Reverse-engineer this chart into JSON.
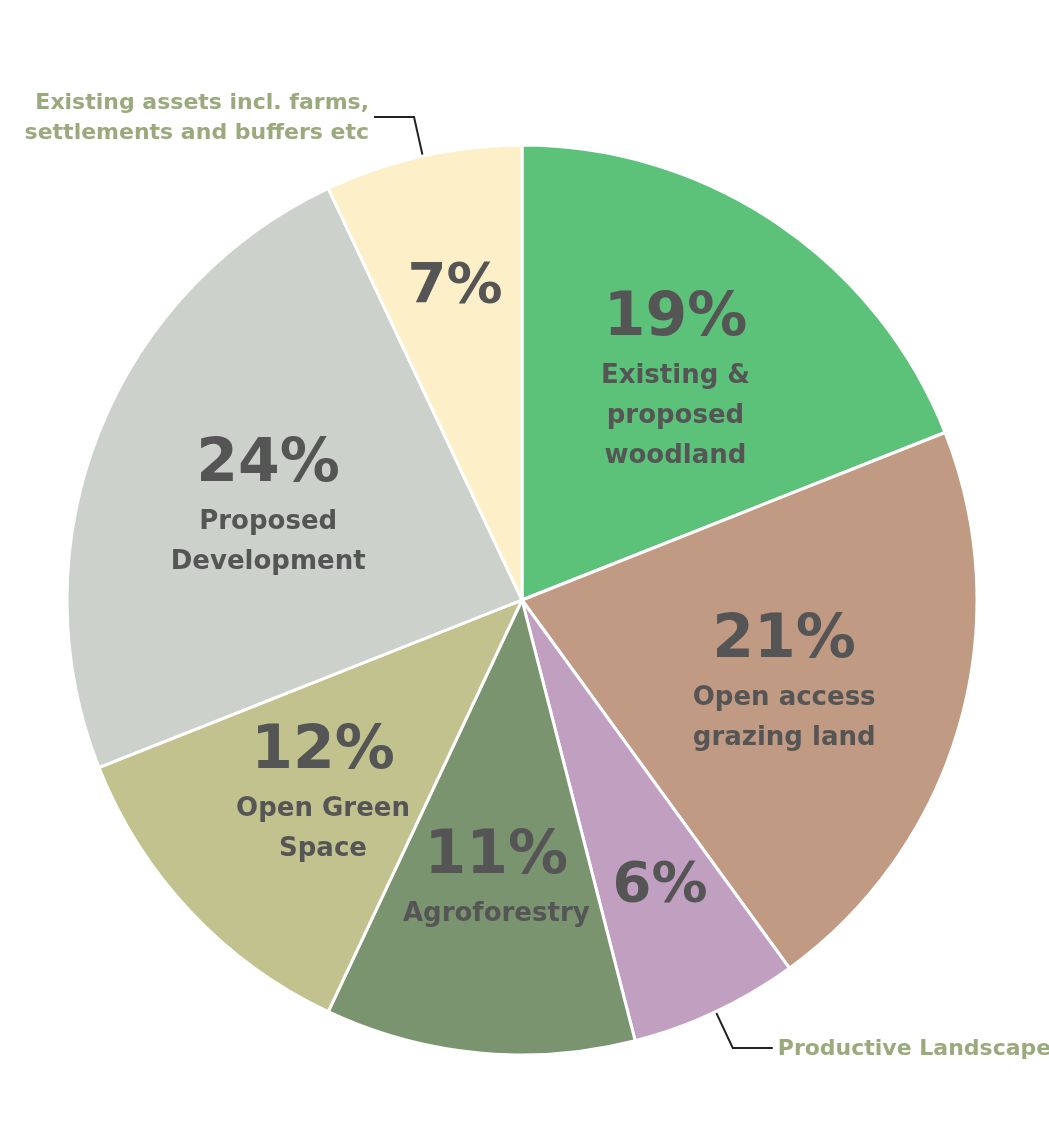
{
  "chart_data": {
    "type": "pie",
    "categories": [
      "Existing & proposed woodland",
      "Open access grazing land",
      "Productive Landscape",
      "Agroforestry",
      "Open Green Space",
      "Proposed Development",
      "Existing assets incl. farms, settlements and buffers etc"
    ],
    "values": [
      19,
      21,
      6,
      11,
      12,
      24,
      7
    ],
    "value_labels": [
      "19%",
      "21%",
      "6%",
      "11%",
      "12%",
      "24%",
      "7%"
    ],
    "colors": [
      "#5cc27a",
      "#c09a82",
      "#c09fc0",
      "#7a9470",
      "#c2c28e",
      "#cdd1cc",
      "#fdf0c8"
    ],
    "legend": false
  }
}
